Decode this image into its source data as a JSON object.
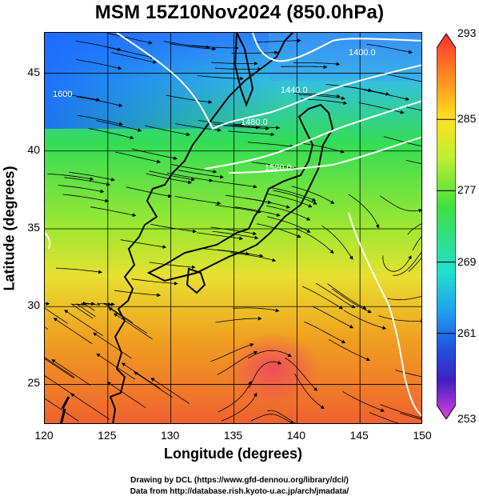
{
  "title": "MSM 15Z10Nov2024 (850.0hPa)",
  "xlabel": "Longitude (degrees)",
  "ylabel": "Latitude  (degrees)",
  "x_ticks": [
    "120",
    "125",
    "130",
    "135",
    "140",
    "145",
    "150"
  ],
  "y_ticks": [
    "25",
    "30",
    "35",
    "40",
    "45"
  ],
  "colorbar_ticks": [
    "293",
    "285",
    "277",
    "269",
    "261",
    "253"
  ],
  "contour_labels": [
    "1400.0",
    "1440.0",
    "1480.0",
    "1520.0",
    "1600"
  ],
  "credits": {
    "line1": "Drawing by DCL (https://www.gfd-dennou.org/library/dcl/)",
    "line2": "Data from http://database.rish.kyoto-u.ac.jp/arch/jmadata/"
  },
  "map": {
    "type": "temperature shading with streamlines",
    "lon_range": [
      120,
      150
    ],
    "lat_range": [
      22.4,
      47.6
    ],
    "color_range": [
      253,
      293
    ],
    "colors": {
      "cold": "#1a5cff",
      "cool": "#3fa0f0",
      "mid": "#33d933",
      "warm": "#e8e030",
      "hot": "#f08020",
      "hottest": "#f25050"
    },
    "gridlines": true
  }
}
